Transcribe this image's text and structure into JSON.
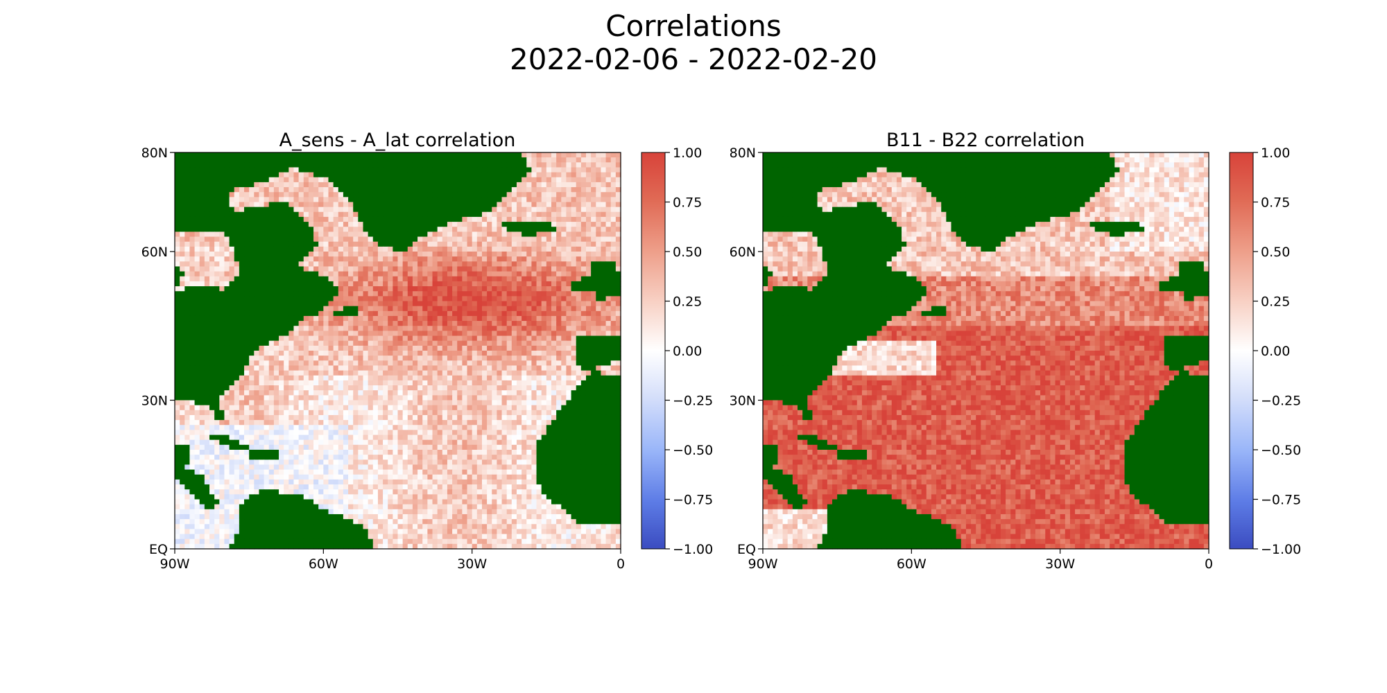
{
  "figure": {
    "title_line1": "Correlations",
    "title_line2": "2022-02-06 - 2022-02-20"
  },
  "colors": {
    "land": "#006400",
    "cmap_low": "#3b6cf4",
    "cmap_mid": "#ffffff",
    "cmap_high": "#d8433a"
  },
  "colormap": "coolwarm",
  "chart_data": [
    {
      "type": "heatmap",
      "title": "A_sens - A_lat correlation",
      "x_ticks": [
        "90W",
        "60W",
        "30W",
        "0"
      ],
      "y_ticks": [
        "80N",
        "60N",
        "30N",
        "EQ"
      ],
      "xlim_deg": [
        -90,
        0
      ],
      "ylim_deg": [
        0,
        80
      ],
      "colorbar_ticks": [
        "1.00",
        "0.75",
        "0.50",
        "0.25",
        "0.00",
        "−0.25",
        "−0.50",
        "−0.75",
        "−1.00"
      ],
      "vmin": -1.0,
      "vmax": 1.0,
      "pattern": "strong positive correlation (~0.9) over subpolar North Atlantic 40-65N; weak positive to near zero in subtropics and tropics; patches of negative near Caribbean and western tropical Atlantic"
    },
    {
      "type": "heatmap",
      "title": "B11 - B22 correlation",
      "x_ticks": [
        "90W",
        "60W",
        "30W",
        "0"
      ],
      "y_ticks": [
        "80N",
        "60N",
        "30N",
        "EQ"
      ],
      "xlim_deg": [
        -90,
        0
      ],
      "ylim_deg": [
        0,
        80
      ],
      "colorbar_ticks": [
        "1.00",
        "0.75",
        "0.50",
        "0.25",
        "0.00",
        "−0.25",
        "−0.50",
        "−0.75",
        "−1.00"
      ],
      "vmin": -1.0,
      "vmax": 1.0,
      "pattern": "strong positive correlation (~0.9) over most of the basin from tropics to 55N; weaker positive to near zero in high latitudes and Labrador / Nordic seas"
    }
  ]
}
